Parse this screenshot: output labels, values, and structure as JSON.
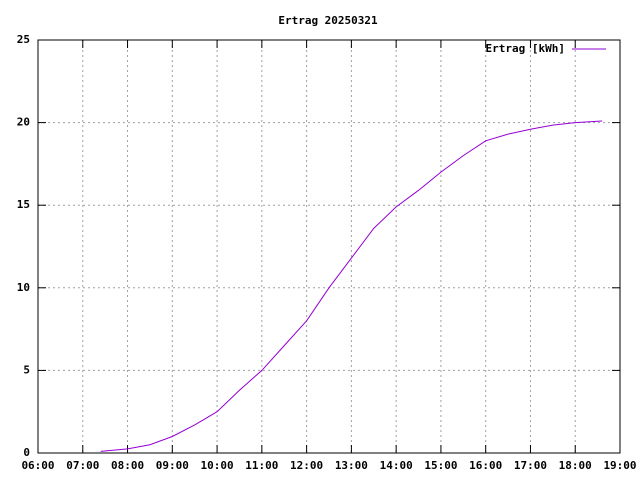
{
  "chart_data": {
    "type": "line",
    "title": "Ertrag 20250321",
    "x": [
      7.4,
      8.0,
      8.5,
      9.0,
      9.5,
      10.0,
      10.5,
      11.0,
      11.5,
      12.0,
      12.5,
      13.0,
      13.5,
      14.0,
      14.5,
      15.0,
      15.5,
      16.0,
      16.5,
      17.0,
      17.5,
      18.0,
      18.6
    ],
    "series": [
      {
        "name": "Ertrag [kWh]",
        "color": "#9400d3",
        "values": [
          0.1,
          0.25,
          0.5,
          1.0,
          1.7,
          2.5,
          3.8,
          5.0,
          6.5,
          8.0,
          10.0,
          11.8,
          13.6,
          14.9,
          15.9,
          17.0,
          18.0,
          18.9,
          19.3,
          19.6,
          19.85,
          20.0,
          20.1
        ]
      }
    ],
    "xlim": [
      6,
      19
    ],
    "xticks": [
      {
        "value": 6,
        "label": "06:00"
      },
      {
        "value": 7,
        "label": "07:00"
      },
      {
        "value": 8,
        "label": "08:00"
      },
      {
        "value": 9,
        "label": "09:00"
      },
      {
        "value": 10,
        "label": "10:00"
      },
      {
        "value": 11,
        "label": "11:00"
      },
      {
        "value": 12,
        "label": "12:00"
      },
      {
        "value": 13,
        "label": "13:00"
      },
      {
        "value": 14,
        "label": "14:00"
      },
      {
        "value": 15,
        "label": "15:00"
      },
      {
        "value": 16,
        "label": "16:00"
      },
      {
        "value": 17,
        "label": "17:00"
      },
      {
        "value": 18,
        "label": "18:00"
      },
      {
        "value": 19,
        "label": "19:00"
      }
    ],
    "ylim": [
      0,
      25
    ],
    "yticks": [
      0,
      5,
      10,
      15,
      20,
      25
    ],
    "grid": true,
    "legend": "top-right"
  }
}
